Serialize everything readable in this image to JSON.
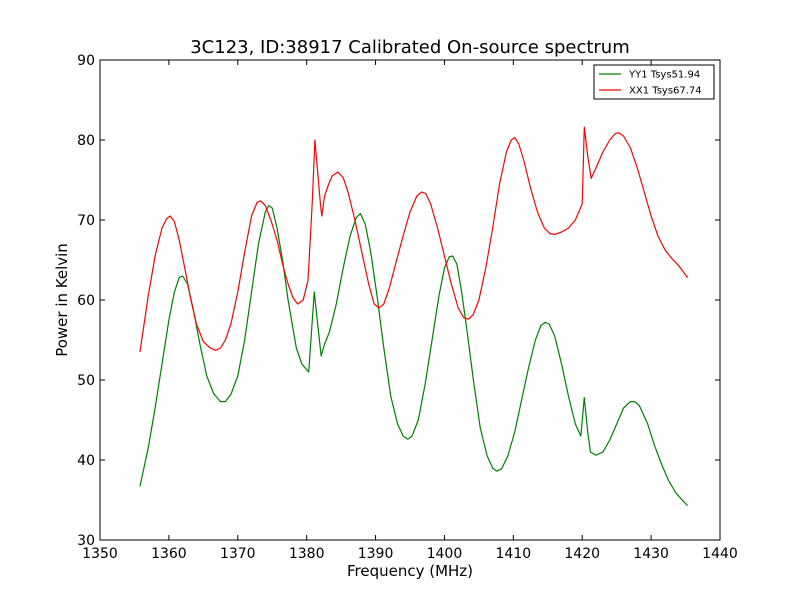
{
  "chart_data": {
    "type": "line",
    "title": "3C123, ID:38917 Calibrated On-source spectrum",
    "xlabel": "Frequency (MHz)",
    "ylabel": "Power in Kelvin",
    "xlim": [
      1350,
      1440
    ],
    "ylim": [
      30,
      90
    ],
    "xticks": [
      1350,
      1360,
      1370,
      1380,
      1390,
      1400,
      1410,
      1420,
      1430,
      1440
    ],
    "yticks": [
      30,
      40,
      50,
      60,
      70,
      80,
      90
    ],
    "grid": false,
    "legend_position": "top-right",
    "series": [
      {
        "name": "YY1 Tsys51.94",
        "color": "#008000",
        "points": [
          [
            1355.8,
            36.7
          ],
          [
            1357.0,
            41.5
          ],
          [
            1358.0,
            46.5
          ],
          [
            1359.0,
            52.0
          ],
          [
            1360.0,
            57.5
          ],
          [
            1360.8,
            61.0
          ],
          [
            1361.5,
            62.8
          ],
          [
            1362.0,
            63.0
          ],
          [
            1362.7,
            62.0
          ],
          [
            1363.5,
            59.0
          ],
          [
            1364.5,
            54.5
          ],
          [
            1365.5,
            50.5
          ],
          [
            1366.5,
            48.3
          ],
          [
            1367.5,
            47.3
          ],
          [
            1368.2,
            47.3
          ],
          [
            1369.0,
            48.2
          ],
          [
            1370.0,
            50.5
          ],
          [
            1371.0,
            55.0
          ],
          [
            1372.0,
            61.0
          ],
          [
            1373.0,
            67.0
          ],
          [
            1374.0,
            71.0
          ],
          [
            1374.5,
            71.8
          ],
          [
            1375.0,
            71.5
          ],
          [
            1375.7,
            69.0
          ],
          [
            1376.5,
            65.0
          ],
          [
            1377.3,
            60.0
          ],
          [
            1378.0,
            56.5
          ],
          [
            1378.5,
            54.0
          ],
          [
            1379.3,
            52.0
          ],
          [
            1380.3,
            51.0
          ],
          [
            1381.1,
            61.0
          ],
          [
            1381.6,
            57.0
          ],
          [
            1382.1,
            53.0
          ],
          [
            1382.6,
            54.5
          ],
          [
            1383.3,
            56.0
          ],
          [
            1384.3,
            59.5
          ],
          [
            1385.3,
            64.0
          ],
          [
            1386.3,
            68.0
          ],
          [
            1387.2,
            70.3
          ],
          [
            1387.8,
            70.8
          ],
          [
            1388.5,
            69.5
          ],
          [
            1389.3,
            66.0
          ],
          [
            1390.3,
            60.0
          ],
          [
            1391.2,
            54.0
          ],
          [
            1392.2,
            48.0
          ],
          [
            1393.2,
            44.5
          ],
          [
            1394.0,
            43.0
          ],
          [
            1394.7,
            42.6
          ],
          [
            1395.3,
            43.0
          ],
          [
            1396.2,
            45.0
          ],
          [
            1397.2,
            49.5
          ],
          [
            1398.2,
            55.0
          ],
          [
            1399.2,
            60.5
          ],
          [
            1400.0,
            64.0
          ],
          [
            1400.7,
            65.4
          ],
          [
            1401.2,
            65.5
          ],
          [
            1401.8,
            64.5
          ],
          [
            1402.5,
            61.0
          ],
          [
            1403.3,
            56.0
          ],
          [
            1404.2,
            50.0
          ],
          [
            1405.2,
            44.0
          ],
          [
            1406.2,
            40.5
          ],
          [
            1407.0,
            39.0
          ],
          [
            1407.6,
            38.6
          ],
          [
            1408.3,
            38.9
          ],
          [
            1409.2,
            40.5
          ],
          [
            1410.2,
            43.5
          ],
          [
            1411.2,
            47.5
          ],
          [
            1412.2,
            51.5
          ],
          [
            1413.2,
            55.0
          ],
          [
            1414.0,
            56.8
          ],
          [
            1414.6,
            57.2
          ],
          [
            1415.2,
            57.0
          ],
          [
            1416.0,
            55.5
          ],
          [
            1417.0,
            52.0
          ],
          [
            1418.0,
            48.0
          ],
          [
            1419.0,
            44.5
          ],
          [
            1419.8,
            43.0
          ],
          [
            1420.3,
            47.8
          ],
          [
            1420.8,
            43.5
          ],
          [
            1421.2,
            41.0
          ],
          [
            1422.0,
            40.6
          ],
          [
            1423.0,
            41.0
          ],
          [
            1424.0,
            42.5
          ],
          [
            1425.0,
            44.5
          ],
          [
            1426.0,
            46.5
          ],
          [
            1427.0,
            47.3
          ],
          [
            1427.6,
            47.3
          ],
          [
            1428.3,
            46.8
          ],
          [
            1429.5,
            44.5
          ],
          [
            1430.5,
            41.8
          ],
          [
            1431.5,
            39.5
          ],
          [
            1432.5,
            37.5
          ],
          [
            1433.5,
            36.0
          ],
          [
            1434.5,
            35.0
          ],
          [
            1435.3,
            34.3
          ]
        ]
      },
      {
        "name": "XX1 Tsys67.74",
        "color": "#ff0000",
        "points": [
          [
            1355.8,
            53.5
          ],
          [
            1357.0,
            60.5
          ],
          [
            1358.0,
            65.5
          ],
          [
            1359.0,
            69.0
          ],
          [
            1359.7,
            70.2
          ],
          [
            1360.2,
            70.5
          ],
          [
            1360.8,
            69.8
          ],
          [
            1361.5,
            67.5
          ],
          [
            1362.3,
            64.0
          ],
          [
            1363.2,
            60.0
          ],
          [
            1364.0,
            57.0
          ],
          [
            1365.0,
            54.8
          ],
          [
            1366.0,
            54.0
          ],
          [
            1366.8,
            53.7
          ],
          [
            1367.5,
            54.0
          ],
          [
            1368.2,
            55.0
          ],
          [
            1369.0,
            57.0
          ],
          [
            1370.0,
            61.0
          ],
          [
            1371.0,
            66.0
          ],
          [
            1372.0,
            70.5
          ],
          [
            1372.8,
            72.2
          ],
          [
            1373.3,
            72.4
          ],
          [
            1374.0,
            71.8
          ],
          [
            1374.8,
            70.0
          ],
          [
            1375.7,
            67.5
          ],
          [
            1376.5,
            64.5
          ],
          [
            1377.3,
            62.0
          ],
          [
            1378.0,
            60.3
          ],
          [
            1378.7,
            59.5
          ],
          [
            1379.5,
            60.0
          ],
          [
            1380.2,
            62.5
          ],
          [
            1380.8,
            72.0
          ],
          [
            1381.2,
            80.0
          ],
          [
            1381.6,
            76.0
          ],
          [
            1382.0,
            72.0
          ],
          [
            1382.2,
            70.5
          ],
          [
            1382.6,
            73.0
          ],
          [
            1383.2,
            74.5
          ],
          [
            1383.7,
            75.5
          ],
          [
            1384.5,
            76.0
          ],
          [
            1385.3,
            75.3
          ],
          [
            1386.0,
            73.5
          ],
          [
            1387.0,
            70.0
          ],
          [
            1388.0,
            66.0
          ],
          [
            1389.0,
            62.0
          ],
          [
            1389.8,
            59.5
          ],
          [
            1390.5,
            59.0
          ],
          [
            1391.2,
            59.5
          ],
          [
            1392.0,
            61.5
          ],
          [
            1393.0,
            64.8
          ],
          [
            1394.0,
            68.0
          ],
          [
            1395.0,
            71.0
          ],
          [
            1396.0,
            73.0
          ],
          [
            1396.7,
            73.5
          ],
          [
            1397.3,
            73.3
          ],
          [
            1398.0,
            72.0
          ],
          [
            1399.0,
            69.0
          ],
          [
            1400.0,
            65.5
          ],
          [
            1401.0,
            62.0
          ],
          [
            1402.0,
            59.0
          ],
          [
            1402.8,
            57.8
          ],
          [
            1403.5,
            57.6
          ],
          [
            1404.2,
            58.2
          ],
          [
            1405.0,
            60.0
          ],
          [
            1406.0,
            64.0
          ],
          [
            1407.0,
            69.0
          ],
          [
            1408.0,
            74.5
          ],
          [
            1409.0,
            78.5
          ],
          [
            1409.7,
            80.0
          ],
          [
            1410.2,
            80.3
          ],
          [
            1410.8,
            79.5
          ],
          [
            1411.5,
            77.5
          ],
          [
            1412.5,
            74.0
          ],
          [
            1413.5,
            71.0
          ],
          [
            1414.5,
            69.0
          ],
          [
            1415.3,
            68.3
          ],
          [
            1416.0,
            68.2
          ],
          [
            1417.0,
            68.5
          ],
          [
            1418.0,
            69.0
          ],
          [
            1419.0,
            70.0
          ],
          [
            1420.0,
            72.0
          ],
          [
            1420.3,
            81.6
          ],
          [
            1420.8,
            78.0
          ],
          [
            1421.3,
            75.2
          ],
          [
            1422.0,
            76.5
          ],
          [
            1423.0,
            78.5
          ],
          [
            1424.0,
            80.0
          ],
          [
            1424.8,
            80.8
          ],
          [
            1425.3,
            80.9
          ],
          [
            1426.0,
            80.5
          ],
          [
            1427.0,
            79.0
          ],
          [
            1428.0,
            76.5
          ],
          [
            1429.0,
            73.5
          ],
          [
            1430.0,
            70.5
          ],
          [
            1431.0,
            68.0
          ],
          [
            1432.0,
            66.3
          ],
          [
            1433.0,
            65.2
          ],
          [
            1434.0,
            64.3
          ],
          [
            1435.3,
            62.8
          ]
        ]
      }
    ]
  }
}
